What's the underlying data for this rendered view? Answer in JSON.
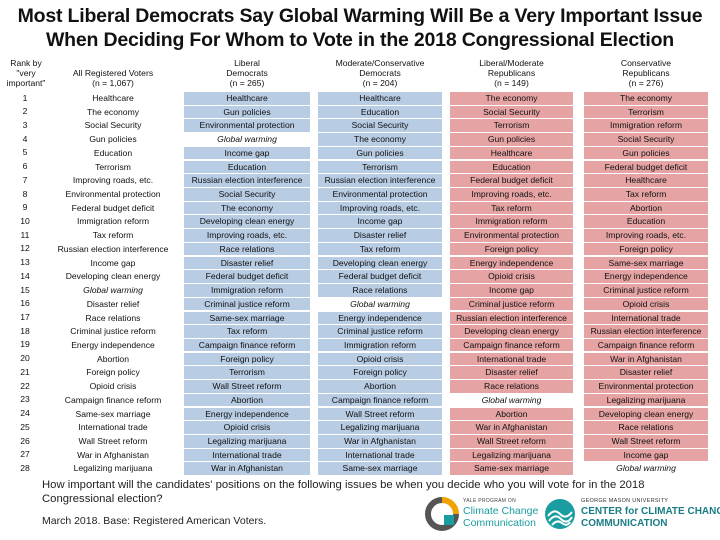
{
  "title_line1": "Most Liberal Democrats Say Global Warming Will Be a Very Important Issue",
  "title_line2": "When Deciding For Whom to Vote in the 2018 Congressional Election",
  "rank_header": [
    "Rank by",
    "\"very",
    "important\""
  ],
  "ranks": [
    "1",
    "2",
    "3",
    "4",
    "5",
    "6",
    "7",
    "8",
    "9",
    "10",
    "11",
    "12",
    "13",
    "14",
    "15",
    "16",
    "17",
    "18",
    "19",
    "20",
    "21",
    "22",
    "23",
    "24",
    "25",
    "26",
    "27",
    "28"
  ],
  "columns": [
    {
      "header": [
        "All Registered Voters",
        "(n = 1,067)"
      ],
      "style": "plain",
      "items": [
        "Healthcare",
        "The economy",
        "Social Security",
        "Gun policies",
        "Education",
        "Terrorism",
        "Improving roads, etc.",
        "Environmental protection",
        "Federal budget deficit",
        "Immigration reform",
        "Tax reform",
        "Russian election interference",
        "Income gap",
        "Developing clean energy",
        "Global warming",
        "Disaster relief",
        "Race relations",
        "Criminal justice reform",
        "Energy independence",
        "Abortion",
        "Foreign policy",
        "Opioid crisis",
        "Campaign finance reform",
        "Same-sex marriage",
        "International trade",
        "Wall Street reform",
        "War in Afghanistan",
        "Legalizing marijuana"
      ]
    },
    {
      "header": [
        "Liberal",
        "Democrats",
        "(n = 265)"
      ],
      "style": "blue",
      "items": [
        "Healthcare",
        "Gun policies",
        "Environmental protection",
        "Global warming",
        "Income gap",
        "Education",
        "Russian election interference",
        "Social Security",
        "The economy",
        "Developing clean energy",
        "Improving roads, etc.",
        "Race relations",
        "Disaster relief",
        "Federal budget deficit",
        "Immigration reform",
        "Criminal justice reform",
        "Same-sex marriage",
        "Tax reform",
        "Campaign finance reform",
        "Foreign policy",
        "Terrorism",
        "Wall Street reform",
        "Abortion",
        "Energy independence",
        "Opioid crisis",
        "Legalizing marijuana",
        "International trade",
        "War in Afghanistan"
      ]
    },
    {
      "header": [
        "Moderate/Conservative",
        "Democrats",
        "(n = 204)"
      ],
      "style": "blue",
      "items": [
        "Healthcare",
        "Education",
        "Social Security",
        "The economy",
        "Gun policies",
        "Terrorism",
        "Russian election interference",
        "Environmental protection",
        "Improving roads, etc.",
        "Income gap",
        "Disaster relief",
        "Tax reform",
        "Developing clean energy",
        "Federal budget deficit",
        "Race relations",
        "Global warming",
        "Energy independence",
        "Criminal justice reform",
        "Immigration reform",
        "Opioid crisis",
        "Foreign policy",
        "Abortion",
        "Campaign finance reform",
        "Wall Street reform",
        "Legalizing marijuana",
        "War in Afghanistan",
        "International trade",
        "Same-sex marriage"
      ]
    },
    {
      "header": [
        "Liberal/Moderate",
        "Republicans",
        "(n = 149)"
      ],
      "style": "red",
      "items": [
        "The economy",
        "Social Security",
        "Terrorism",
        "Gun policies",
        "Healthcare",
        "Education",
        "Federal budget deficit",
        "Improving roads, etc.",
        "Tax reform",
        "Immigration reform",
        "Environmental protection",
        "Foreign policy",
        "Energy independence",
        "Opioid crisis",
        "Income gap",
        "Criminal justice reform",
        "Russian election interference",
        "Developing clean energy",
        "Campaign finance reform",
        "International trade",
        "Disaster relief",
        "Race relations",
        "Global warming",
        "Abortion",
        "War in Afghanistan",
        "Wall Street reform",
        "Legalizing marijuana",
        "Same-sex marriage"
      ]
    },
    {
      "header": [
        "Conservative",
        "Republicans",
        "(n = 276)"
      ],
      "style": "red",
      "items": [
        "The economy",
        "Terrorism",
        "Immigration reform",
        "Social Security",
        "Gun policies",
        "Federal budget deficit",
        "Healthcare",
        "Tax reform",
        "Abortion",
        "Education",
        "Improving roads, etc.",
        "Foreign policy",
        "Same-sex marriage",
        "Energy independence",
        "Criminal justice reform",
        "Opioid crisis",
        "International trade",
        "Russian election interference",
        "Campaign finance reform",
        "War in Afghanistan",
        "Disaster relief",
        "Environmental protection",
        "Legalizing marijuana",
        "Developing clean energy",
        "Race relations",
        "Wall Street reform",
        "Income gap",
        "Global warming"
      ]
    }
  ],
  "highlight_item": "Global warming",
  "question": "How important will the candidates' positions on the following issues be when you decide who you will vote for in the 2018 Congressional election?",
  "base_note": "March 2018. Base: Registered American Voters.",
  "logo1": {
    "line1": "YALE PROGRAM ON",
    "line2": "Climate Change",
    "line3": "Communication"
  },
  "logo2": {
    "line1": "GEORGE MASON UNIVERSITY",
    "line2": "CENTER for CLIMATE CHANGE",
    "line3": "COMMUNICATION"
  },
  "colors": {
    "democrat_fill": "#b8cce4",
    "republican_fill": "#e6a3a3",
    "logo_teal": "#1a9da0"
  }
}
